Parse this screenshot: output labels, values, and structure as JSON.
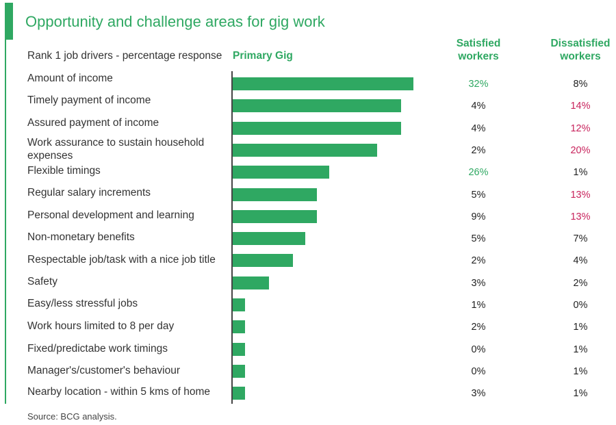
{
  "title": "Opportunity and challenge areas for gig work",
  "source": "Source: BCG analysis.",
  "colors": {
    "accent": "#2fa862",
    "highlight_positive": "#2fa862",
    "highlight_negative": "#c8235c",
    "text": "#333333"
  },
  "chart_data": {
    "type": "bar",
    "orientation": "horizontal",
    "title": "Opportunity and challenge areas for gig work",
    "row_header": "Rank 1  job drivers - percentage response",
    "bar_series_name": "Primary Gig",
    "xlim": [
      0,
      15
    ],
    "categories": [
      "Amount of income",
      "Timely payment of income",
      "Assured payment of income",
      "Work assurance to sustain household expenses",
      "Flexible timings",
      "Regular salary increments",
      "Personal development and learning",
      "Non-monetary benefits",
      "Respectable job/task with a nice job title",
      "Safety",
      "Easy/less stressful jobs",
      "Work hours limited to 8 per day",
      "Fixed/predictabe work timings",
      "Manager's/customer's behaviour",
      "Nearby location - within 5 kms of home"
    ],
    "values": [
      15,
      14,
      14,
      12,
      8,
      7,
      7,
      6,
      5,
      3,
      1,
      1,
      1,
      1,
      1
    ],
    "table_columns": [
      {
        "name": "Satisfied workers",
        "values": [
          "32%",
          "4%",
          "4%",
          "2%",
          "26%",
          "5%",
          "9%",
          "5%",
          "2%",
          "3%",
          "1%",
          "2%",
          "0%",
          "0%",
          "3%"
        ],
        "highlight": [
          "green",
          "",
          "",
          "",
          "green",
          "",
          "",
          "",
          "",
          "",
          "",
          "",
          "",
          "",
          ""
        ]
      },
      {
        "name": "Dissatisfied workers",
        "values": [
          "8%",
          "14%",
          "12%",
          "20%",
          "1%",
          "13%",
          "13%",
          "7%",
          "4%",
          "2%",
          "0%",
          "1%",
          "1%",
          "1%",
          "1%"
        ],
        "highlight": [
          "",
          "red",
          "red",
          "red",
          "",
          "red",
          "red",
          "",
          "",
          "",
          "",
          "",
          "",
          "",
          ""
        ]
      }
    ]
  }
}
